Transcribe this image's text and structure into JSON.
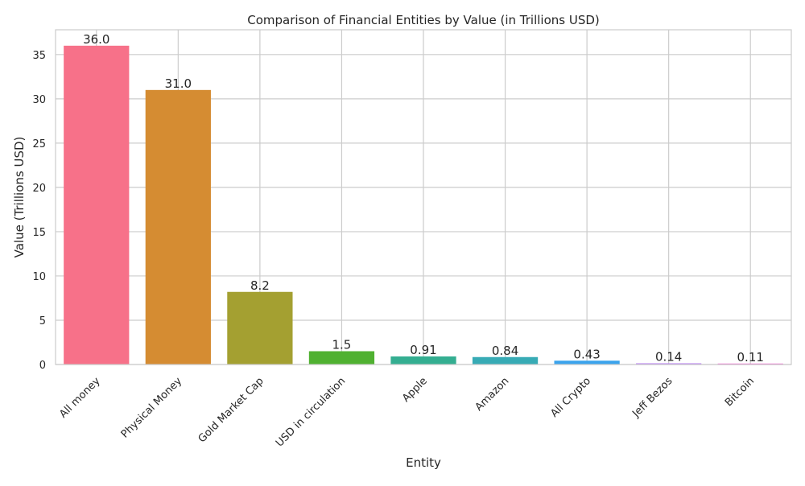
{
  "chart_data": {
    "type": "bar",
    "title": "Comparison of Financial Entities by Value (in Trillions USD)",
    "xlabel": "Entity",
    "ylabel": "Value (Trillions USD)",
    "categories": [
      "All money",
      "Physical Money",
      "Gold Market Cap",
      "USD in circulation",
      "Apple",
      "Amazon",
      "All Crypto",
      "Jeff Bezos",
      "Bitcoin"
    ],
    "values": [
      36.0,
      31.0,
      8.2,
      1.5,
      0.91,
      0.84,
      0.43,
      0.14,
      0.11
    ],
    "value_labels": [
      "36.0",
      "31.0",
      "8.2",
      "1.5",
      "0.91",
      "0.84",
      "0.43",
      "0.14",
      "0.11"
    ],
    "colors": [
      "#f77189",
      "#d58c32",
      "#a4a031",
      "#50b131",
      "#34ae91",
      "#37abb5",
      "#3ba3ec",
      "#bb83f4",
      "#f564d4"
    ],
    "ylim": [
      0,
      37.8
    ],
    "yticks": [
      0,
      5,
      10,
      15,
      20,
      25,
      30,
      35
    ],
    "grid": true,
    "legend": "none"
  }
}
